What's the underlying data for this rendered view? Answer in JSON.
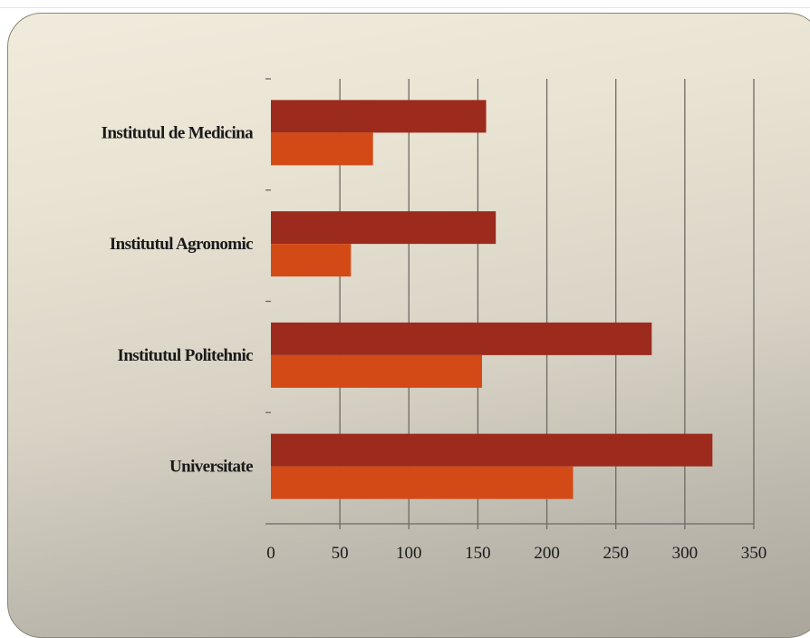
{
  "chart_data": {
    "type": "bar",
    "orientation": "horizontal",
    "categories": [
      "Universitate",
      "Institutul Politehnic",
      "Institutul Agronomic",
      "Institutul de Medicina"
    ],
    "series": [
      {
        "values": [
          320,
          276,
          163,
          156
        ],
        "color": "#9c2b1e"
      },
      {
        "values": [
          219,
          153,
          58,
          74
        ],
        "color": "#d44a17"
      }
    ],
    "xlim": [
      0,
      350
    ],
    "xticks": [
      0,
      50,
      100,
      150,
      200,
      250,
      300,
      350
    ],
    "grid": true,
    "title": "",
    "xlabel": "",
    "ylabel": ""
  }
}
